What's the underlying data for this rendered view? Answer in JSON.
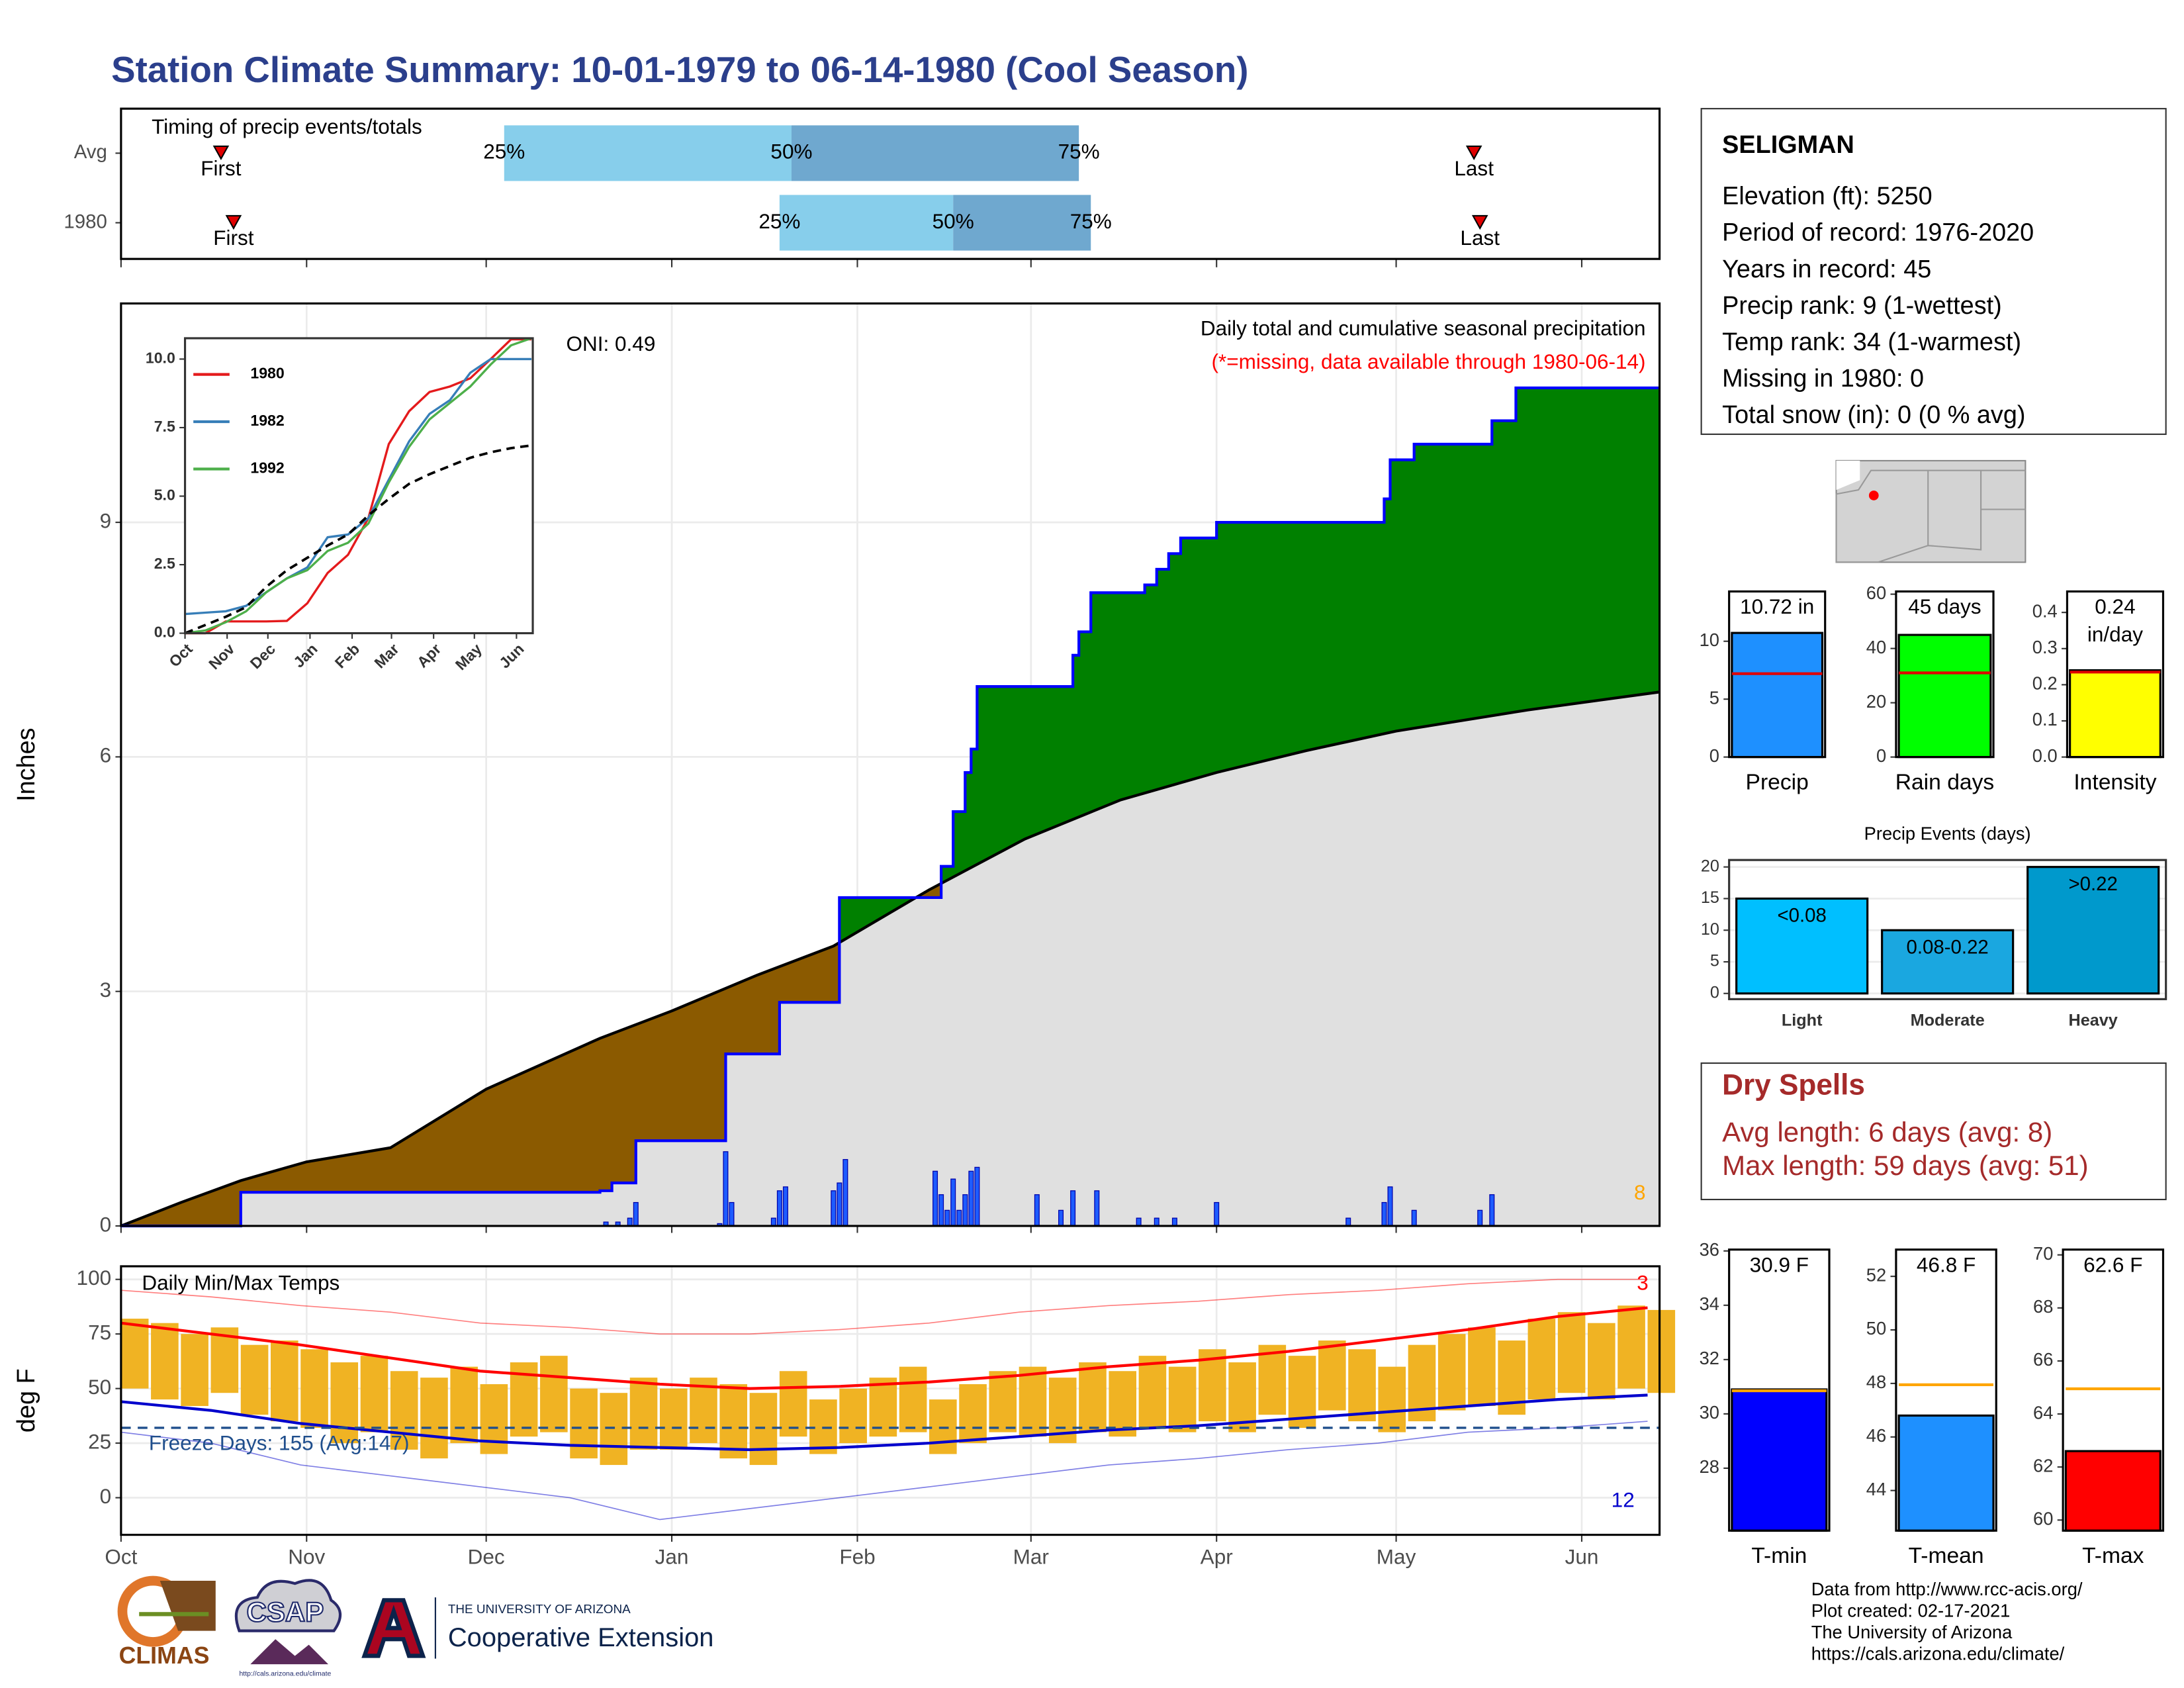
{
  "title": "Station Climate Summary: 10-01-1979 to 06-14-1980 (Cool Season)",
  "station": {
    "name": "SELIGMAN",
    "lines": [
      "Elevation (ft): 5250",
      "Period of record: 1976-2020",
      "Years in record: 45",
      "Precip rank: 9 (1-wettest)",
      "Temp rank: 34 (1-warmest)",
      "Missing in 1980: 0",
      "Total snow (in): 0 (0 % avg)"
    ]
  },
  "dry_spells": {
    "title": "Dry Spells",
    "lines": [
      "Avg length: 6 days (avg: 8)",
      "Max length: 59 days (avg: 51)"
    ]
  },
  "credits": [
    "Data from http://www.rcc-acis.org/",
    "Plot created: 02-17-2021",
    "The University of Arizona",
    "https://cals.arizona.edu/climate/"
  ],
  "logos": {
    "climas": "CLIMAS",
    "csap": "CSAP",
    "csap_url": "http://cals.arizona.edu/climate",
    "university": "THE UNIVERSITY OF ARIZONA",
    "unit": "Cooperative Extension"
  },
  "chart_data": [
    {
      "type": "timing",
      "title": "Timing of precip events/totals",
      "xlim": [
        0,
        257
      ],
      "xticks": [
        0,
        31,
        61,
        92,
        123,
        152,
        183,
        213,
        244
      ],
      "rows": [
        {
          "name": "Avg",
          "first": 16.7,
          "p25": 64,
          "p50": 112,
          "p75": 160,
          "last": 226
        },
        {
          "name": "1980",
          "first": 18.8,
          "p25": 110,
          "p50": 139,
          "p75": 162,
          "last": 227
        }
      ],
      "marker_labels": {
        "first": "First",
        "last": "Last",
        "p25": "25%",
        "p50": "50%",
        "p75": "75%"
      },
      "colors": {
        "low": "#87ceeb",
        "high": "#6fa8cf",
        "marker": "#e00000"
      }
    },
    {
      "type": "cumulative",
      "title": "Daily total and cumulative seasonal precipitation",
      "subtitle": "(*=missing, data available through 1980-06-14)",
      "annotations": [
        "ONI: 0.49",
        "8"
      ],
      "ylabel": "Inches",
      "xlim": [
        0,
        257
      ],
      "xticks": [
        0,
        31,
        61,
        92,
        123,
        152,
        183,
        213,
        244
      ],
      "ylim": [
        0,
        11.8
      ],
      "yticks": [
        0,
        3,
        6,
        9
      ],
      "grid": true,
      "observed": {
        "x": [
          0,
          20,
          80,
          82,
          86,
          101,
          110,
          120,
          137,
          139,
          141,
          142,
          143,
          159,
          160,
          162,
          171,
          173,
          175,
          177,
          183,
          211,
          212,
          216,
          229,
          233,
          257
        ],
        "values": [
          0,
          0.43,
          0.45,
          0.55,
          1.09,
          2.2,
          2.86,
          4.2,
          4.6,
          5.3,
          5.8,
          6.1,
          6.9,
          7.3,
          7.6,
          8.1,
          8.2,
          8.4,
          8.6,
          8.8,
          9.0,
          9.3,
          9.8,
          10.0,
          10.3,
          10.72,
          10.72
        ]
      },
      "normal": {
        "x": [
          0,
          10,
          20,
          31,
          45,
          61,
          80,
          92,
          106,
          119,
          135,
          151,
          167,
          183,
          198,
          213,
          235,
          257
        ],
        "values": [
          0,
          0.3,
          0.58,
          0.82,
          1.0,
          1.75,
          2.4,
          2.75,
          3.2,
          3.58,
          4.3,
          4.95,
          5.45,
          5.8,
          6.08,
          6.33,
          6.6,
          6.83
        ]
      },
      "daily": {
        "x": [
          81,
          83,
          85,
          86,
          100,
          101,
          102,
          109,
          110,
          111,
          119,
          120,
          121,
          136,
          137,
          138,
          139,
          140,
          141,
          142,
          143,
          153,
          157,
          159,
          163,
          170,
          173,
          176,
          183,
          205,
          211,
          212,
          216,
          227,
          229
        ],
        "values": [
          0.05,
          0.05,
          0.1,
          0.3,
          0.03,
          0.95,
          0.3,
          0.1,
          0.45,
          0.5,
          0.45,
          0.55,
          0.85,
          0.7,
          0.4,
          0.2,
          0.6,
          0.2,
          0.4,
          0.7,
          0.75,
          0.4,
          0.2,
          0.45,
          0.45,
          0.1,
          0.1,
          0.1,
          0.3,
          0.1,
          0.3,
          0.5,
          0.2,
          0.2,
          0.4
        ]
      },
      "colors": {
        "above": "#008000",
        "below": "#8b5a00",
        "shared": "#e0e0e0",
        "line": "#0000ff",
        "normal": "#000000",
        "bars": "#1e5cff",
        "annotation": "#ffa500",
        "subtitle": "#ff0000"
      }
    },
    {
      "type": "line",
      "xlim": [
        0,
        256
      ],
      "xticks": [
        {
          "value": 0,
          "label": "Oct"
        },
        {
          "value": 31,
          "label": "Nov"
        },
        {
          "value": 61,
          "label": "Dec"
        },
        {
          "value": 92,
          "label": "Jan"
        },
        {
          "value": 123,
          "label": "Feb"
        },
        {
          "value": 152,
          "label": "Mar"
        },
        {
          "value": 183,
          "label": "Apr"
        },
        {
          "value": 213,
          "label": "May"
        },
        {
          "value": 244,
          "label": "Jun"
        }
      ],
      "ylim": [
        0,
        10.76
      ],
      "yticks": [
        {
          "value": 0,
          "label": "0.0"
        },
        2.5,
        {
          "value": 5,
          "label": "5.0"
        },
        7.5,
        {
          "value": 10,
          "label": "10.0"
        }
      ],
      "x": [
        0,
        15,
        30,
        45,
        60,
        75,
        90,
        105,
        120,
        135,
        150,
        165,
        180,
        195,
        210,
        225,
        240,
        255
      ],
      "series": [
        {
          "name": "1980",
          "color": "#e41a1c",
          "values": [
            0,
            0,
            0.43,
            0.43,
            0.43,
            0.45,
            1.09,
            2.2,
            2.86,
            4.2,
            6.9,
            8.1,
            8.8,
            9.0,
            9.3,
            10.0,
            10.72,
            10.72
          ]
        },
        {
          "name": "1982",
          "color": "#377eb8",
          "values": [
            0.7,
            0.75,
            0.8,
            1.0,
            1.5,
            2.0,
            2.4,
            3.5,
            3.6,
            4.2,
            5.6,
            7.0,
            8.0,
            8.5,
            9.5,
            10.0,
            10.0,
            10.0
          ]
        },
        {
          "name": "1992",
          "color": "#4daf4a",
          "values": [
            0,
            0.1,
            0.4,
            0.8,
            1.5,
            2.0,
            2.3,
            3.0,
            3.3,
            4.0,
            5.5,
            6.8,
            7.8,
            8.4,
            9.0,
            9.8,
            10.5,
            10.76
          ]
        },
        {
          "color": "#000000",
          "dash": true,
          "values": [
            0,
            0.3,
            0.6,
            0.95,
            1.7,
            2.3,
            2.75,
            3.2,
            3.6,
            4.3,
            4.9,
            5.45,
            5.8,
            6.1,
            6.4,
            6.6,
            6.75,
            6.85
          ]
        }
      ]
    },
    {
      "type": "temperature",
      "title": "Daily Min/Max Temps",
      "annotations": [
        "Freeze Days: 155 (Avg:147)",
        "3",
        "12"
      ],
      "ylabel": "deg F",
      "xlim": [
        0,
        257
      ],
      "xticks": [
        {
          "value": 0,
          "label": "Oct"
        },
        {
          "value": 31,
          "label": "Nov"
        },
        {
          "value": 61,
          "label": "Dec"
        },
        {
          "value": 92,
          "label": "Jan"
        },
        {
          "value": 123,
          "label": "Feb"
        },
        {
          "value": 152,
          "label": "Mar"
        },
        {
          "value": 183,
          "label": "Apr"
        },
        {
          "value": 213,
          "label": "May"
        },
        {
          "value": 244,
          "label": "Jun"
        }
      ],
      "ylim": [
        -17,
        106
      ],
      "yticks": [
        0,
        25,
        50,
        75,
        100
      ],
      "grid": true,
      "freeze": 32,
      "x": [
        0,
        5,
        10,
        15,
        20,
        25,
        30,
        35,
        40,
        45,
        50,
        55,
        60,
        65,
        70,
        75,
        80,
        85,
        90,
        95,
        100,
        105,
        110,
        115,
        120,
        125,
        130,
        135,
        140,
        145,
        150,
        155,
        160,
        165,
        170,
        175,
        180,
        185,
        190,
        195,
        200,
        205,
        210,
        215,
        220,
        225,
        230,
        235,
        240,
        245,
        250,
        255
      ],
      "tmax": [
        82,
        80,
        75,
        78,
        70,
        72,
        68,
        62,
        65,
        58,
        55,
        60,
        52,
        62,
        65,
        50,
        48,
        55,
        50,
        55,
        52,
        48,
        58,
        45,
        50,
        55,
        60,
        45,
        52,
        58,
        60,
        55,
        62,
        58,
        65,
        60,
        68,
        62,
        70,
        65,
        72,
        68,
        60,
        70,
        75,
        78,
        72,
        82,
        85,
        80,
        88,
        86
      ],
      "tmin": [
        50,
        45,
        42,
        48,
        38,
        35,
        32,
        25,
        30,
        22,
        18,
        25,
        20,
        28,
        30,
        18,
        15,
        22,
        22,
        25,
        18,
        15,
        28,
        20,
        25,
        28,
        30,
        20,
        25,
        30,
        28,
        25,
        30,
        28,
        32,
        30,
        35,
        30,
        38,
        32,
        40,
        35,
        30,
        35,
        40,
        42,
        38,
        45,
        48,
        45,
        50,
        48
      ],
      "normal_x": [
        0,
        15,
        30,
        45,
        60,
        75,
        90,
        105,
        120,
        135,
        150,
        165,
        180,
        195,
        210,
        225,
        240,
        255
      ],
      "normal_max": [
        80,
        75,
        70,
        64,
        58,
        55,
        52,
        50,
        51,
        53,
        56,
        60,
        63,
        67,
        72,
        77,
        83,
        87
      ],
      "normal_min": [
        44,
        40,
        34,
        30,
        26,
        24,
        23,
        22,
        23,
        25,
        28,
        31,
        33,
        36,
        39,
        42,
        45,
        47
      ],
      "record_max": [
        95,
        92,
        88,
        85,
        80,
        78,
        75,
        75,
        77,
        80,
        85,
        88,
        90,
        93,
        95,
        98,
        100,
        100
      ],
      "record_min": [
        30,
        25,
        15,
        10,
        5,
        0,
        -10,
        -5,
        0,
        5,
        10,
        15,
        18,
        22,
        25,
        30,
        32,
        35
      ],
      "colors": {
        "bars": "#f0b323",
        "max": "#ff0000",
        "min": "#0000cc",
        "freeze": "#1f4e8c"
      }
    },
    {
      "type": "summary",
      "category": "Precip",
      "values": [
        10.72
      ],
      "value_labels": [
        "10.72 in"
      ],
      "average": 7.2,
      "ylim": [
        0,
        14.3
      ],
      "yticks": [
        0,
        5,
        10
      ],
      "color": "#1e90ff",
      "avg_color": "#e00000"
    },
    {
      "type": "summary",
      "category": "Rain days",
      "values": [
        45
      ],
      "value_labels": [
        "45 days"
      ],
      "average": 31,
      "ylim": [
        0,
        61
      ],
      "yticks": [
        0,
        20,
        40,
        60
      ],
      "color": "#00ff00",
      "avg_color": "#e00000"
    },
    {
      "type": "summary",
      "category": "Intensity",
      "values": [
        0.24
      ],
      "value_labels": [
        "0.24 in/day"
      ],
      "average": 0.235,
      "ylim": [
        0,
        0.458
      ],
      "yticks": [
        {
          "value": 0,
          "label": "0.0"
        },
        0.1,
        0.2,
        0.3,
        0.4
      ],
      "color": "#ffff00",
      "avg_color": "#e00000"
    },
    {
      "type": "bar",
      "title": "Precip Events (days)",
      "categories": [
        "Light",
        "Moderate",
        "Heavy"
      ],
      "values": [
        15,
        10,
        20
      ],
      "bar_labels": [
        "<0.08",
        "0.08-0.22",
        ">0.22"
      ],
      "colors": [
        "#00bfff",
        "#1aa7e0",
        "#0099cc"
      ],
      "ylim": [
        -0.9,
        21.1
      ],
      "yticks": [
        0,
        5,
        10,
        15,
        20
      ],
      "grid": true
    },
    {
      "type": "summary",
      "category": "T-min",
      "values": [
        30.9
      ],
      "value_labels": [
        "30.9 F"
      ],
      "average": 30.85,
      "ylim": [
        25.7,
        36.05
      ],
      "yticks": [
        28,
        30,
        32,
        34,
        36
      ],
      "color": "#0000ff",
      "avg_color": "#ffa500"
    },
    {
      "type": "summary",
      "category": "T-mean",
      "values": [
        46.8
      ],
      "value_labels": [
        "46.8 F"
      ],
      "average": 47.95,
      "ylim": [
        42.5,
        53.0
      ],
      "yticks": [
        44,
        46,
        48,
        50,
        52
      ],
      "color": "#1e90ff",
      "avg_color": "#ffa500"
    },
    {
      "type": "summary",
      "category": "T-max",
      "values": [
        62.6
      ],
      "value_labels": [
        "62.6 F"
      ],
      "average": 64.95,
      "ylim": [
        59.6,
        70.2
      ],
      "yticks": [
        60,
        62,
        64,
        66,
        68,
        70
      ],
      "color": "#ff0000",
      "avg_color": "#ffa500"
    }
  ]
}
